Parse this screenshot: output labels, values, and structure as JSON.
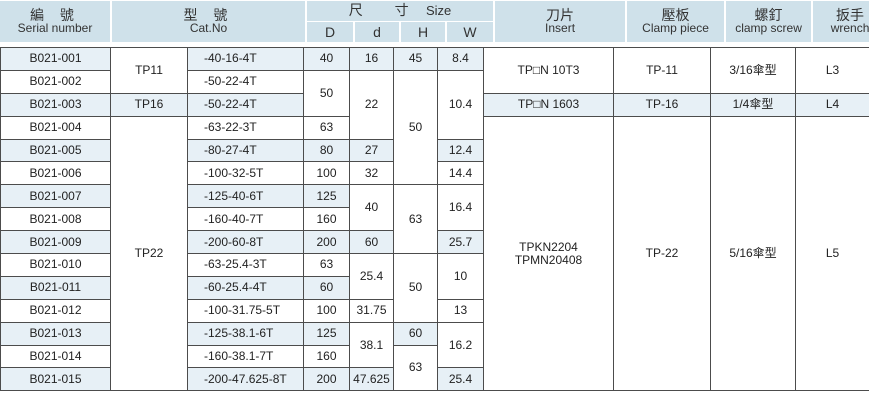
{
  "header": {
    "serial": {
      "zh": "編 號",
      "en": "Serial number"
    },
    "cat": {
      "zh": "型 號",
      "en": "Cat.No"
    },
    "size": {
      "zh": "尺 寸",
      "en": "Size"
    },
    "dims": [
      "D",
      "d",
      "H",
      "W"
    ],
    "insert": {
      "zh": "刀片",
      "en": "Insert"
    },
    "clamp": {
      "zh": "壓板",
      "en": "Clamp piece"
    },
    "screw": {
      "zh": "螺釘",
      "en": "clamp screw"
    },
    "wrench": {
      "zh": "扳手",
      "en": "wrench"
    }
  },
  "table": {
    "row_count": 15,
    "columns": [
      {
        "key": "serial",
        "groups": [
          {
            "value": "B021-001",
            "rows": 1
          },
          {
            "value": "B021-002",
            "rows": 1
          },
          {
            "value": "B021-003",
            "rows": 1
          },
          {
            "value": "B021-004",
            "rows": 1
          },
          {
            "value": "B021-005",
            "rows": 1
          },
          {
            "value": "B021-006",
            "rows": 1
          },
          {
            "value": "B021-007",
            "rows": 1
          },
          {
            "value": "B021-008",
            "rows": 1
          },
          {
            "value": "B021-009",
            "rows": 1
          },
          {
            "value": "B021-010",
            "rows": 1
          },
          {
            "value": "B021-011",
            "rows": 1
          },
          {
            "value": "B021-012",
            "rows": 1
          },
          {
            "value": "B021-013",
            "rows": 1
          },
          {
            "value": "B021-014",
            "rows": 1
          },
          {
            "value": "B021-015",
            "rows": 1
          }
        ]
      },
      {
        "key": "model",
        "groups": [
          {
            "value": "TP11",
            "rows": 2
          },
          {
            "value": "TP16",
            "rows": 1
          },
          {
            "value": "TP22",
            "rows": 12
          }
        ]
      },
      {
        "key": "cat_suffix",
        "groups": [
          {
            "value": "-40-16-4T",
            "rows": 1
          },
          {
            "value": "-50-22-4T",
            "rows": 1
          },
          {
            "value": "-50-22-4T",
            "rows": 1
          },
          {
            "value": "-63-22-3T",
            "rows": 1
          },
          {
            "value": "-80-27-4T",
            "rows": 1
          },
          {
            "value": "-100-32-5T",
            "rows": 1
          },
          {
            "value": "-125-40-6T",
            "rows": 1
          },
          {
            "value": "-160-40-7T",
            "rows": 1
          },
          {
            "value": "-200-60-8T",
            "rows": 1
          },
          {
            "value": "-63-25.4-3T",
            "rows": 1
          },
          {
            "value": "-60-25.4-4T",
            "rows": 1
          },
          {
            "value": "-100-31.75-5T",
            "rows": 1
          },
          {
            "value": "-125-38.1-6T",
            "rows": 1
          },
          {
            "value": "-160-38.1-7T",
            "rows": 1
          },
          {
            "value": "-200-47.625-8T",
            "rows": 1
          }
        ]
      },
      {
        "key": "D",
        "groups": [
          {
            "value": "40",
            "rows": 1
          },
          {
            "value": "50",
            "rows": 2
          },
          {
            "value": "63",
            "rows": 1
          },
          {
            "value": "80",
            "rows": 1
          },
          {
            "value": "100",
            "rows": 1
          },
          {
            "value": "125",
            "rows": 1
          },
          {
            "value": "160",
            "rows": 1
          },
          {
            "value": "200",
            "rows": 1
          },
          {
            "value": "63",
            "rows": 1
          },
          {
            "value": "60",
            "rows": 1
          },
          {
            "value": "100",
            "rows": 1
          },
          {
            "value": "125",
            "rows": 1
          },
          {
            "value": "160",
            "rows": 1
          },
          {
            "value": "200",
            "rows": 1
          }
        ]
      },
      {
        "key": "d",
        "groups": [
          {
            "value": "16",
            "rows": 1
          },
          {
            "value": "22",
            "rows": 3
          },
          {
            "value": "27",
            "rows": 1
          },
          {
            "value": "32",
            "rows": 1
          },
          {
            "value": "40",
            "rows": 2
          },
          {
            "value": "60",
            "rows": 1
          },
          {
            "value": "25.4",
            "rows": 2
          },
          {
            "value": "31.75",
            "rows": 1
          },
          {
            "value": "38.1",
            "rows": 2
          },
          {
            "value": "47.625",
            "rows": 1
          }
        ]
      },
      {
        "key": "H",
        "groups": [
          {
            "value": "45",
            "rows": 1
          },
          {
            "value": "50",
            "rows": 5
          },
          {
            "value": "63",
            "rows": 3
          },
          {
            "value": "50",
            "rows": 3
          },
          {
            "value": "60",
            "rows": 1
          },
          {
            "value": "63",
            "rows": 2
          }
        ]
      },
      {
        "key": "W",
        "groups": [
          {
            "value": "8.4",
            "rows": 1
          },
          {
            "value": "10.4",
            "rows": 3
          },
          {
            "value": "12.4",
            "rows": 1
          },
          {
            "value": "14.4",
            "rows": 1
          },
          {
            "value": "16.4",
            "rows": 2
          },
          {
            "value": "25.7",
            "rows": 1
          },
          {
            "value": "10",
            "rows": 2
          },
          {
            "value": "13",
            "rows": 1
          },
          {
            "value": "16.2",
            "rows": 2
          },
          {
            "value": "25.4",
            "rows": 1
          }
        ]
      },
      {
        "key": "insert",
        "groups": [
          {
            "value": "TP□N 10T3",
            "rows": 2
          },
          {
            "value": "TP□N 1603",
            "rows": 1
          },
          {
            "value": "TPKN2204\nTPMN20408",
            "rows": 12
          }
        ]
      },
      {
        "key": "clamp",
        "groups": [
          {
            "value": "TP-11",
            "rows": 2
          },
          {
            "value": "TP-16",
            "rows": 1
          },
          {
            "value": "TP-22",
            "rows": 12
          }
        ]
      },
      {
        "key": "screw",
        "groups": [
          {
            "value": "3/16傘型",
            "rows": 2
          },
          {
            "value": "1/4傘型",
            "rows": 1
          },
          {
            "value": "5/16傘型",
            "rows": 12
          }
        ]
      },
      {
        "key": "wrench",
        "groups": [
          {
            "value": "L3",
            "rows": 2
          },
          {
            "value": "L4",
            "rows": 1
          },
          {
            "value": "L5",
            "rows": 12
          }
        ]
      }
    ]
  },
  "colors": {
    "header_bg": "#cfe1ea",
    "stripe_bg": "#e7f0f6",
    "border": "#4c4c4c"
  }
}
